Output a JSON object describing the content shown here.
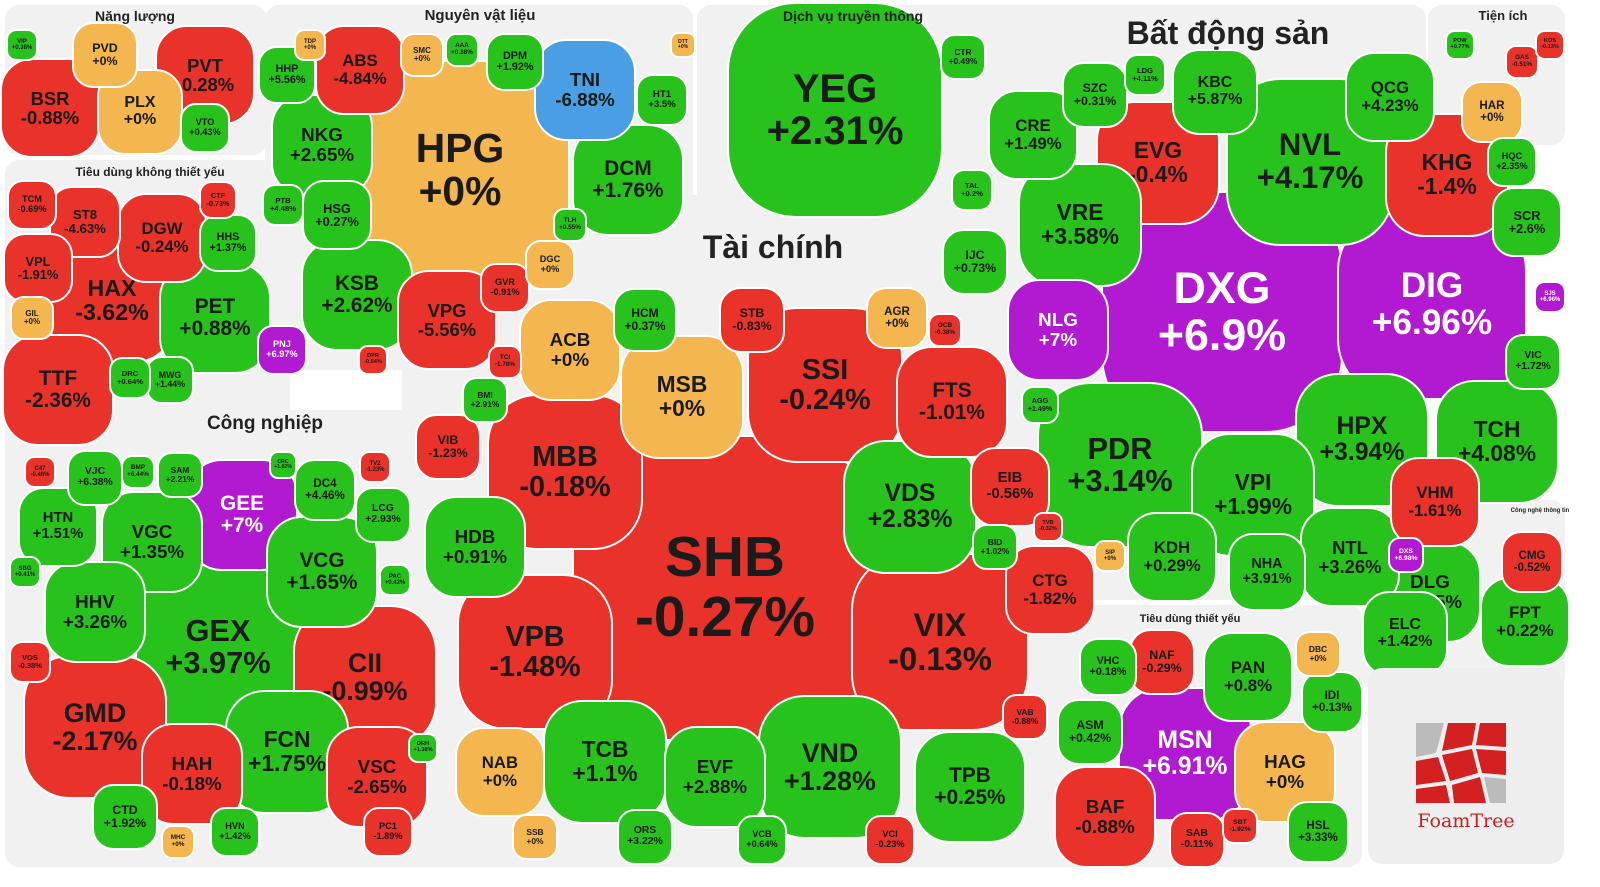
{
  "chart_data": {
    "type": "treemap",
    "title": "",
    "value_label": "% change",
    "colors": {
      "up": "#27c21c",
      "down": "#e8322a",
      "flat": "#f4b64e",
      "ceiling": "#b21ad2",
      "floor": "#4a9fe4"
    },
    "groups": [
      {
        "name": "Năng lượng",
        "cells": [
          {
            "ticker": "VIP",
            "change": "+0.38%"
          },
          {
            "ticker": "PVD",
            "change": "+0%"
          },
          {
            "ticker": "PVT",
            "change": "-0.28%"
          },
          {
            "ticker": "BSR",
            "change": "-0.88%"
          },
          {
            "ticker": "PLX",
            "change": "+0%"
          },
          {
            "ticker": "VTO",
            "change": "+0.43%"
          }
        ]
      },
      {
        "name": "Tiêu dùng không thiết yếu",
        "cells": [
          {
            "ticker": "TCM",
            "change": "-0.69%"
          },
          {
            "ticker": "ST8",
            "change": "-4.63%"
          },
          {
            "ticker": "DGW",
            "change": "-0.24%"
          },
          {
            "ticker": "CTF",
            "change": "-0.73%"
          },
          {
            "ticker": "HHS",
            "change": "+1.37%"
          },
          {
            "ticker": "VPL",
            "change": "-1.91%"
          },
          {
            "ticker": "HAX",
            "change": "-3.62%"
          },
          {
            "ticker": "PET",
            "change": "+0.88%"
          },
          {
            "ticker": "GIL",
            "change": "+0%"
          },
          {
            "ticker": "TTF",
            "change": "-2.36%"
          },
          {
            "ticker": "DRC",
            "change": "+0.64%"
          },
          {
            "ticker": "MWG",
            "change": "+1.44%"
          },
          {
            "ticker": "PNJ",
            "change": "+6.97%"
          }
        ]
      },
      {
        "name": "Nguyên vật liệu",
        "cells": [
          {
            "ticker": "HHP",
            "change": "+5.56%"
          },
          {
            "ticker": "TDP",
            "change": "+0%"
          },
          {
            "ticker": "ABS",
            "change": "-4.84%"
          },
          {
            "ticker": "SMC",
            "change": "+0%"
          },
          {
            "ticker": "AAA",
            "change": "+0.38%"
          },
          {
            "ticker": "DPM",
            "change": "+1.92%"
          },
          {
            "ticker": "TNI",
            "change": "-6.88%"
          },
          {
            "ticker": "HT1",
            "change": "+3.5%"
          },
          {
            "ticker": "DTT",
            "change": "+0%"
          },
          {
            "ticker": "HPG",
            "change": "+0%"
          },
          {
            "ticker": "NKG",
            "change": "+2.65%"
          },
          {
            "ticker": "DCM",
            "change": "+1.76%"
          },
          {
            "ticker": "HSG",
            "change": "+0.27%"
          },
          {
            "ticker": "PTB",
            "change": "+4.48%"
          },
          {
            "ticker": "KSB",
            "change": "+2.62%"
          },
          {
            "ticker": "VPG",
            "change": "-5.56%"
          },
          {
            "ticker": "GVR",
            "change": "-0.91%"
          },
          {
            "ticker": "DGC",
            "change": "+0%"
          },
          {
            "ticker": "TLH",
            "change": "+0.55%"
          },
          {
            "ticker": "DPR",
            "change": "-0.54%"
          }
        ]
      },
      {
        "name": "Dịch vụ truyền thông",
        "cells": [
          {
            "ticker": "YEG",
            "change": "+2.31%"
          },
          {
            "ticker": "CTR",
            "change": "+0.49%"
          }
        ]
      },
      {
        "name": "Bất động sản",
        "cells": [
          {
            "ticker": "CRE",
            "change": "+1.49%"
          },
          {
            "ticker": "SZC",
            "change": "+0.31%"
          },
          {
            "ticker": "LDG",
            "change": "+4.11%"
          },
          {
            "ticker": "KBC",
            "change": "+5.87%"
          },
          {
            "ticker": "QCG",
            "change": "+4.23%"
          },
          {
            "ticker": "EVG",
            "change": "-0.4%"
          },
          {
            "ticker": "NVL",
            "change": "+4.17%"
          },
          {
            "ticker": "KHG",
            "change": "-1.4%"
          },
          {
            "ticker": "VRE",
            "change": "+3.58%"
          },
          {
            "ticker": "HQC",
            "change": "+2.35%"
          },
          {
            "ticker": "SCR",
            "change": "+2.6%"
          },
          {
            "ticker": "IJC",
            "change": "+0.73%"
          },
          {
            "ticker": "TAL",
            "change": "+0.2%"
          },
          {
            "ticker": "NLG",
            "change": "+7%"
          },
          {
            "ticker": "DXG",
            "change": "+6.9%"
          },
          {
            "ticker": "DIG",
            "change": "+6.96%"
          },
          {
            "ticker": "VIC",
            "change": "+1.72%"
          },
          {
            "ticker": "SJS",
            "change": "+6.96%"
          },
          {
            "ticker": "PDR",
            "change": "+3.14%"
          },
          {
            "ticker": "HPX",
            "change": "+3.94%"
          },
          {
            "ticker": "TCH",
            "change": "+4.08%"
          },
          {
            "ticker": "VPI",
            "change": "+1.99%"
          },
          {
            "ticker": "VHM",
            "change": "-1.61%"
          },
          {
            "ticker": "KDH",
            "change": "+0.29%"
          },
          {
            "ticker": "NTL",
            "change": "+3.26%"
          },
          {
            "ticker": "NHA",
            "change": "+3.91%"
          },
          {
            "ticker": "DXS",
            "change": "+6.98%"
          },
          {
            "ticker": "SIP",
            "change": "+0%"
          },
          {
            "ticker": "AGG",
            "change": "+1.49%"
          }
        ]
      },
      {
        "name": "Tiện ích",
        "cells": [
          {
            "ticker": "HAR",
            "change": "+0%"
          },
          {
            "ticker": "GAS",
            "change": "-0.51%"
          },
          {
            "ticker": "KOS",
            "change": "-0.13%"
          },
          {
            "ticker": "POW",
            "change": "+0.77%"
          }
        ]
      },
      {
        "name": "Tài chính",
        "cells": [
          {
            "ticker": "HCM",
            "change": "+0.37%"
          },
          {
            "ticker": "STB",
            "change": "-0.83%"
          },
          {
            "ticker": "AGR",
            "change": "+0%"
          },
          {
            "ticker": "OCB",
            "change": "-0.38%"
          },
          {
            "ticker": "ACB",
            "change": "+0%"
          },
          {
            "ticker": "MSB",
            "change": "+0%"
          },
          {
            "ticker": "SSI",
            "change": "-0.24%"
          },
          {
            "ticker": "FTS",
            "change": "-1.01%"
          },
          {
            "ticker": "TCI",
            "change": "-1.78%"
          },
          {
            "ticker": "BMI",
            "change": "+2.91%"
          },
          {
            "ticker": "VIB",
            "change": "-1.23%"
          },
          {
            "ticker": "MBB",
            "change": "-0.18%"
          },
          {
            "ticker": "SHB",
            "change": "-0.27%"
          },
          {
            "ticker": "VDS",
            "change": "+2.83%"
          },
          {
            "ticker": "EIB",
            "change": "-0.56%"
          },
          {
            "ticker": "HDB",
            "change": "+0.91%"
          },
          {
            "ticker": "BID",
            "change": "+1.02%"
          },
          {
            "ticker": "CTG",
            "change": "-1.82%"
          },
          {
            "ticker": "VPB",
            "change": "-1.48%"
          },
          {
            "ticker": "VIX",
            "change": "-0.13%"
          },
          {
            "ticker": "VAB",
            "change": "-0.88%"
          },
          {
            "ticker": "NAB",
            "change": "+0%"
          },
          {
            "ticker": "TCB",
            "change": "+1.1%"
          },
          {
            "ticker": "EVF",
            "change": "+2.88%"
          },
          {
            "ticker": "VND",
            "change": "+1.28%"
          },
          {
            "ticker": "TPB",
            "change": "+0.25%"
          },
          {
            "ticker": "SSB",
            "change": "+0%"
          },
          {
            "ticker": "ORS",
            "change": "+3.22%"
          },
          {
            "ticker": "VCB",
            "change": "+0.64%"
          },
          {
            "ticker": "VCI",
            "change": "-0.23%"
          },
          {
            "ticker": "TVB",
            "change": "-0.32%"
          }
        ]
      },
      {
        "name": "Công nghiệp",
        "cells": [
          {
            "ticker": "VJC",
            "change": "+6.38%"
          },
          {
            "ticker": "BMP",
            "change": "+6.44%"
          },
          {
            "ticker": "SAM",
            "change": "+2.21%"
          },
          {
            "ticker": "GEE",
            "change": "+7%"
          },
          {
            "ticker": "DC4",
            "change": "+4.46%"
          },
          {
            "ticker": "LCG",
            "change": "+2.93%"
          },
          {
            "ticker": "CRC",
            "change": "+1.02%"
          },
          {
            "ticker": "TV2",
            "change": "-1.23%"
          },
          {
            "ticker": "C47",
            "change": "-0.46%"
          },
          {
            "ticker": "HTN",
            "change": "+1.51%"
          },
          {
            "ticker": "VGC",
            "change": "+1.35%"
          },
          {
            "ticker": "VCG",
            "change": "+1.65%"
          },
          {
            "ticker": "HHV",
            "change": "+3.26%"
          },
          {
            "ticker": "GEX",
            "change": "+3.97%"
          },
          {
            "ticker": "CII",
            "change": "-0.99%"
          },
          {
            "ticker": "GMD",
            "change": "-2.17%"
          },
          {
            "ticker": "FCN",
            "change": "+1.75%"
          },
          {
            "ticker": "HAH",
            "change": "-0.18%"
          },
          {
            "ticker": "VSC",
            "change": "-2.65%"
          },
          {
            "ticker": "CTD",
            "change": "+1.92%"
          },
          {
            "ticker": "HVN",
            "change": "+1.42%"
          },
          {
            "ticker": "MHC",
            "change": "+0%"
          },
          {
            "ticker": "PC1",
            "change": "-1.89%"
          },
          {
            "ticker": "VOS",
            "change": "-0.38%"
          },
          {
            "ticker": "PAC",
            "change": "+0.42%"
          },
          {
            "ticker": "SBG",
            "change": "+0.41%"
          },
          {
            "ticker": "DRH",
            "change": "+1.38%"
          }
        ]
      },
      {
        "name": "Tiêu dùng thiết yếu",
        "cells": [
          {
            "ticker": "VHC",
            "change": "+0.18%"
          },
          {
            "ticker": "NAF",
            "change": "-0.29%"
          },
          {
            "ticker": "PAN",
            "change": "+0.8%"
          },
          {
            "ticker": "DBC",
            "change": "+0%"
          },
          {
            "ticker": "IDI",
            "change": "+0.13%"
          },
          {
            "ticker": "ASM",
            "change": "+0.42%"
          },
          {
            "ticker": "MSN",
            "change": "+6.91%"
          },
          {
            "ticker": "HAG",
            "change": "+0%"
          },
          {
            "ticker": "BAF",
            "change": "-0.88%"
          },
          {
            "ticker": "SAB",
            "change": "-0.11%"
          },
          {
            "ticker": "HSL",
            "change": "+3.33%"
          },
          {
            "ticker": "SBT",
            "change": "-1.92%"
          }
        ]
      },
      {
        "name": "Công nghệ thông tin",
        "cells": [
          {
            "ticker": "CMG",
            "change": "-0.52%"
          },
          {
            "ticker": "DLG",
            "change": "+1.15%"
          },
          {
            "ticker": "ELC",
            "change": "+1.42%"
          },
          {
            "ticker": "FPT",
            "change": "+0.22%"
          }
        ]
      }
    ]
  },
  "brand": {
    "name": "FoamTree"
  }
}
